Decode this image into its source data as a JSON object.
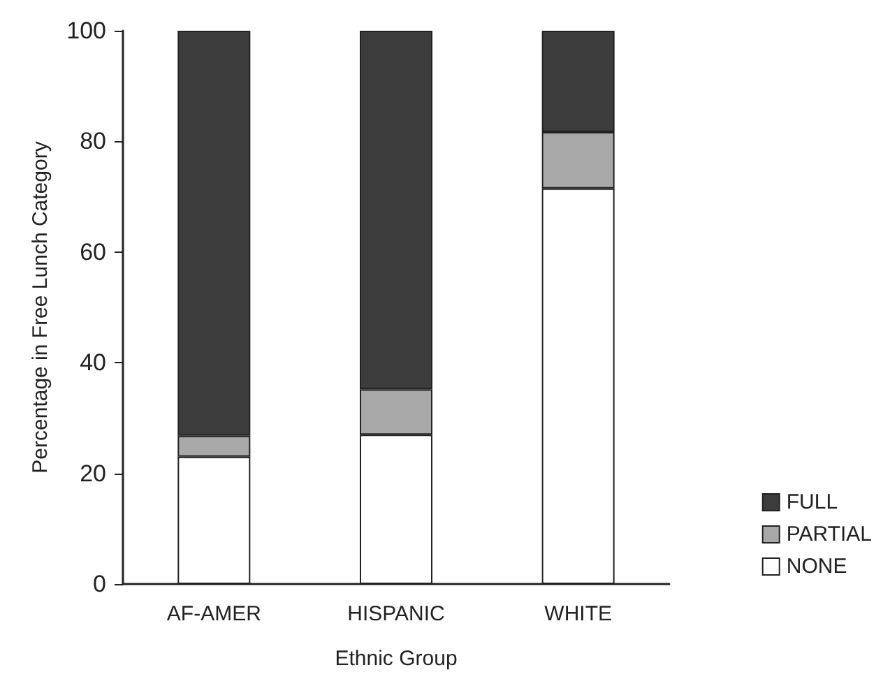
{
  "chart_data": {
    "type": "bar",
    "stacked": true,
    "xlabel": "Ethnic Group",
    "ylabel": "Percentage in Free Lunch Category",
    "categories": [
      "AF-AMER",
      "HISPANIC",
      "WHITE"
    ],
    "series": [
      {
        "name": "NONE",
        "color": "#ffffff",
        "values": [
          23,
          27,
          71.5
        ]
      },
      {
        "name": "PARTIAL",
        "color": "#a8a8a8",
        "values": [
          3.8,
          8.2,
          10.2
        ]
      },
      {
        "name": "FULL",
        "color": "#3c3c3c",
        "values": [
          73.2,
          64.8,
          18.3
        ]
      }
    ],
    "ylim": [
      0,
      100
    ],
    "yticks": [
      0,
      20,
      40,
      60,
      80,
      100
    ],
    "grid": false,
    "legend": "bottom right"
  }
}
